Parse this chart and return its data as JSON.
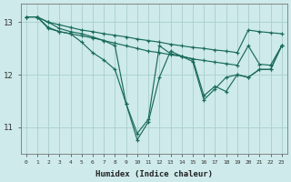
{
  "xlabel": "Humidex (Indice chaleur)",
  "background_color": "#ceeaea",
  "grid_color": "#aacece",
  "line_color": "#1a6b5a",
  "xlim": [
    -0.5,
    23.5
  ],
  "ylim": [
    10.5,
    13.35
  ],
  "yticks": [
    11,
    12,
    13
  ],
  "lines": [
    {
      "x": [
        0,
        1,
        2,
        3,
        4,
        5,
        6,
        7,
        8,
        9,
        10,
        11,
        12,
        13,
        14,
        15,
        16,
        17,
        18,
        19,
        20,
        21,
        22,
        23
      ],
      "y": [
        13.1,
        13.1,
        13.0,
        12.95,
        12.9,
        12.85,
        12.82,
        12.78,
        12.75,
        12.72,
        12.68,
        12.65,
        12.62,
        12.58,
        12.55,
        12.52,
        12.5,
        12.47,
        12.45,
        12.42,
        12.85,
        12.82,
        12.8,
        12.78
      ]
    },
    {
      "x": [
        0,
        1,
        2,
        3,
        4,
        5,
        6,
        7,
        8,
        9,
        10,
        11,
        12,
        13,
        14,
        15,
        16,
        17,
        18,
        19,
        20,
        21,
        22,
        23
      ],
      "y": [
        13.1,
        13.1,
        12.9,
        12.82,
        12.78,
        12.74,
        12.7,
        12.65,
        12.6,
        12.55,
        12.5,
        12.45,
        12.42,
        12.38,
        12.35,
        12.3,
        12.27,
        12.24,
        12.21,
        12.18,
        12.55,
        12.2,
        12.18,
        12.55
      ]
    },
    {
      "x": [
        1,
        2,
        3,
        4,
        5,
        6,
        7,
        8,
        9,
        10,
        11,
        12,
        13,
        14,
        15,
        16,
        17,
        18,
        19,
        20,
        21,
        22,
        23
      ],
      "y": [
        13.1,
        12.88,
        12.82,
        12.78,
        12.62,
        12.42,
        12.28,
        12.1,
        11.45,
        10.88,
        11.15,
        12.55,
        12.4,
        12.35,
        12.3,
        11.6,
        11.78,
        11.68,
        12.0,
        11.95,
        12.1,
        12.1,
        12.55
      ]
    },
    {
      "x": [
        0,
        1,
        2,
        3,
        4,
        5,
        6,
        7,
        8,
        9,
        10,
        11,
        12,
        13,
        14,
        15,
        16,
        17,
        18,
        19,
        20,
        21,
        22,
        23
      ],
      "y": [
        13.1,
        13.1,
        13.0,
        12.88,
        12.82,
        12.78,
        12.72,
        12.65,
        12.55,
        11.45,
        10.76,
        11.1,
        11.95,
        12.45,
        12.35,
        12.25,
        11.52,
        11.73,
        11.95,
        12.0,
        11.95,
        12.1,
        12.1,
        12.55
      ]
    }
  ],
  "xtick_labels": [
    "0",
    "1",
    "2",
    "3",
    "4",
    "5",
    "6",
    "7",
    "8",
    "9",
    "10",
    "11",
    "12",
    "13",
    "14",
    "15",
    "16",
    "17",
    "18",
    "19",
    "20",
    "21",
    "22",
    "23"
  ]
}
